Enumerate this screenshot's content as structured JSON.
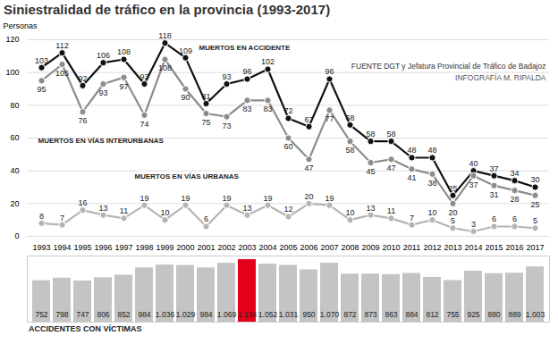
{
  "chart_data": [
    {
      "type": "line",
      "title": "Siniestralidad de tráfico en la provincia (1993-2017)",
      "y_label": "Personas",
      "source": "FUENTE DGT y Jefatura Provincial de Tráfico de Badajoz",
      "credit": "INFOGRAFÍA M. RIPALDA",
      "categories": [
        "1993",
        "1994",
        "1995",
        "1996",
        "1997",
        "1998",
        "1999",
        "2000",
        "2001",
        "2002",
        "2003",
        "2004",
        "2005",
        "2006",
        "2007",
        "2008",
        "2009",
        "2010",
        "2011",
        "2012",
        "2013",
        "2014",
        "2015",
        "2016",
        "2017"
      ],
      "series": [
        {
          "name": "MUERTOS EN ACCIDENTE",
          "color": "#111111",
          "marker": "circle",
          "values": [
            103,
            112,
            92,
            106,
            108,
            93,
            118,
            109,
            81,
            93,
            96,
            102,
            72,
            67,
            96,
            68,
            58,
            58,
            48,
            48,
            25,
            40,
            37,
            34,
            30
          ]
        },
        {
          "name": "MUERTOS EN VÍAS INTERURBANAS",
          "color": "#8c8c8c",
          "marker": "circle",
          "values": [
            95,
            105,
            76,
            93,
            97,
            74,
            108,
            90,
            75,
            73,
            83,
            83,
            60,
            47,
            77,
            58,
            45,
            47,
            41,
            38,
            20,
            37,
            31,
            28,
            25
          ]
        },
        {
          "name": "MUERTOS EN VÍAS URBANAS",
          "color": "#b4b4b4",
          "marker": "circle",
          "values": [
            8,
            7,
            16,
            13,
            11,
            19,
            10,
            19,
            6,
            19,
            13,
            19,
            12,
            20,
            19,
            10,
            13,
            11,
            7,
            10,
            5,
            3,
            6,
            6,
            5
          ]
        }
      ],
      "ylim": [
        0,
        120
      ],
      "yticks": [
        0,
        20,
        40,
        60,
        80,
        100,
        120
      ],
      "grid": true,
      "data_labels": true
    },
    {
      "type": "bar",
      "title": "ACCIDENTES CON VÍCTIMAS",
      "categories": [
        "1993",
        "1994",
        "1995",
        "1996",
        "1997",
        "1998",
        "1999",
        "2000",
        "2001",
        "2002",
        "2003",
        "2004",
        "2005",
        "2006",
        "2007",
        "2008",
        "2009",
        "2010",
        "2011",
        "2012",
        "2013",
        "2014",
        "2015",
        "2016",
        "2017"
      ],
      "values": [
        752,
        798,
        747,
        806,
        852,
        984,
        1036,
        1029,
        984,
        1069,
        1134,
        1052,
        1031,
        950,
        1070,
        872,
        873,
        863,
        884,
        812,
        755,
        925,
        880,
        889,
        1003
      ],
      "value_labels": [
        "752",
        "798",
        "747",
        "806",
        "852",
        "984",
        "1.036",
        "1.029",
        "984",
        "1.069",
        "1.134",
        "1.052",
        "1.031",
        "950",
        "1.070",
        "872",
        "873",
        "863",
        "884",
        "812",
        "755",
        "925",
        "880",
        "889",
        "1.003"
      ],
      "colors": [
        "#c4c4c4",
        "#c4c4c4",
        "#c4c4c4",
        "#c4c4c4",
        "#c4c4c4",
        "#c4c4c4",
        "#c4c4c4",
        "#c4c4c4",
        "#c4c4c4",
        "#c4c4c4",
        "#e2001a",
        "#c4c4c4",
        "#c4c4c4",
        "#c4c4c4",
        "#c4c4c4",
        "#c4c4c4",
        "#c4c4c4",
        "#c4c4c4",
        "#c4c4c4",
        "#c4c4c4",
        "#c4c4c4",
        "#c4c4c4",
        "#c4c4c4",
        "#c4c4c4",
        "#c4c4c4"
      ],
      "ylim": [
        0,
        1200
      ],
      "tick_labels": false,
      "data_labels": true
    }
  ]
}
